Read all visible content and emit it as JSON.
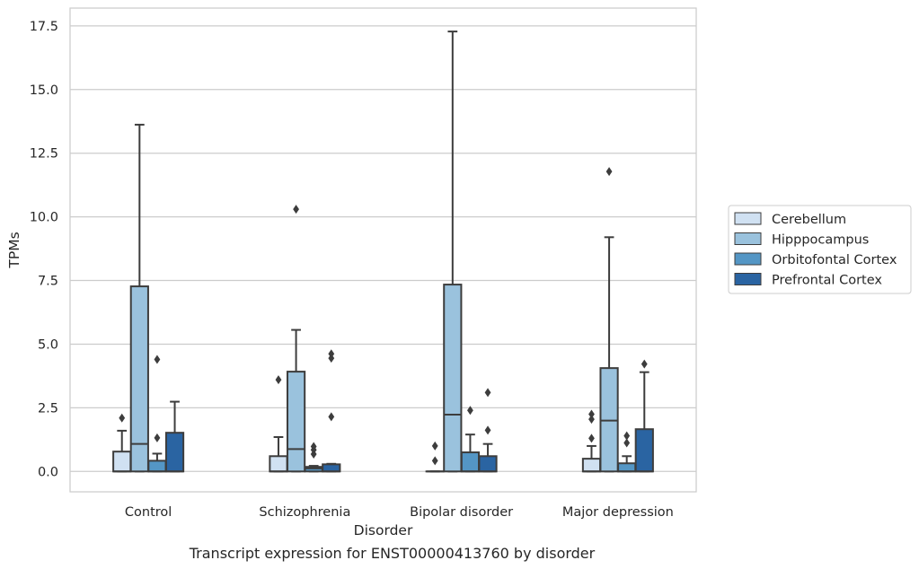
{
  "chart_data": {
    "type": "box",
    "caption": "Transcript expression for ENST00000413760 by disorder",
    "xlabel": "Disorder",
    "ylabel": "TPMs",
    "ylim": [
      -0.8,
      18.2
    ],
    "yticks": [
      "0.0",
      "2.5",
      "5.0",
      "7.5",
      "10.0",
      "12.5",
      "15.0",
      "17.5"
    ],
    "grid": "horizontal",
    "legend_position": "right",
    "categories": [
      "Control",
      "Schizophrenia",
      "Bipolar disorder",
      "Major depression"
    ],
    "series": [
      {
        "name": "Cerebellum",
        "color": "#d0e1f2",
        "boxes": [
          {
            "whisker_low": 0.0,
            "q1": 0.0,
            "median": 0.0,
            "q3": 0.78,
            "whisker_high": 1.6,
            "outliers": [
              2.1
            ]
          },
          {
            "whisker_low": 0.0,
            "q1": 0.0,
            "median": 0.0,
            "q3": 0.6,
            "whisker_high": 1.35,
            "outliers": [
              3.6
            ]
          },
          {
            "whisker_low": 0.0,
            "q1": 0.0,
            "median": 0.0,
            "q3": 0.0,
            "whisker_high": 0.0,
            "outliers": [
              0.42,
              1.0
            ]
          },
          {
            "whisker_low": 0.0,
            "q1": 0.0,
            "median": 0.0,
            "q3": 0.5,
            "whisker_high": 1.0,
            "outliers": [
              1.3,
              2.05,
              2.25
            ]
          }
        ]
      },
      {
        "name": "Hipppocampus",
        "color": "#9ac2dd",
        "boxes": [
          {
            "whisker_low": 0.0,
            "q1": 0.0,
            "median": 1.08,
            "q3": 7.27,
            "whisker_high": 13.62,
            "outliers": []
          },
          {
            "whisker_low": 0.0,
            "q1": 0.0,
            "median": 0.88,
            "q3": 3.92,
            "whisker_high": 5.56,
            "outliers": [
              10.3
            ]
          },
          {
            "whisker_low": 0.0,
            "q1": 0.0,
            "median": 2.23,
            "q3": 7.34,
            "whisker_high": 17.28,
            "outliers": []
          },
          {
            "whisker_low": 0.0,
            "q1": 0.0,
            "median": 2.0,
            "q3": 4.06,
            "whisker_high": 9.2,
            "outliers": [
              11.78
            ]
          }
        ]
      },
      {
        "name": "Orbitofontal Cortex",
        "color": "#5496c5",
        "boxes": [
          {
            "whisker_low": 0.0,
            "q1": 0.0,
            "median": 0.0,
            "q3": 0.42,
            "whisker_high": 0.7,
            "outliers": [
              1.32,
              4.4
            ]
          },
          {
            "whisker_low": 0.0,
            "q1": 0.0,
            "median": 0.12,
            "q3": 0.18,
            "whisker_high": 0.22,
            "outliers": [
              0.68,
              0.85,
              0.98
            ]
          },
          {
            "whisker_low": 0.0,
            "q1": 0.0,
            "median": 0.0,
            "q3": 0.75,
            "whisker_high": 1.45,
            "outliers": [
              2.4
            ]
          },
          {
            "whisker_low": 0.0,
            "q1": 0.0,
            "median": 0.0,
            "q3": 0.32,
            "whisker_high": 0.6,
            "outliers": [
              1.12,
              1.4
            ]
          }
        ]
      },
      {
        "name": "Prefrontal Cortex",
        "color": "#2a64a2",
        "boxes": [
          {
            "whisker_low": 0.0,
            "q1": 0.0,
            "median": 0.0,
            "q3": 1.52,
            "whisker_high": 2.74,
            "outliers": []
          },
          {
            "whisker_low": 0.0,
            "q1": 0.0,
            "median": 0.0,
            "q3": 0.28,
            "whisker_high": 0.3,
            "outliers": [
              2.15,
              4.45,
              4.62
            ]
          },
          {
            "whisker_low": 0.0,
            "q1": 0.0,
            "median": 0.0,
            "q3": 0.6,
            "whisker_high": 1.08,
            "outliers": [
              1.62,
              3.1
            ]
          },
          {
            "whisker_low": 0.0,
            "q1": 0.0,
            "median": 0.0,
            "q3": 1.66,
            "whisker_high": 3.9,
            "outliers": [
              4.22
            ]
          }
        ]
      }
    ]
  }
}
